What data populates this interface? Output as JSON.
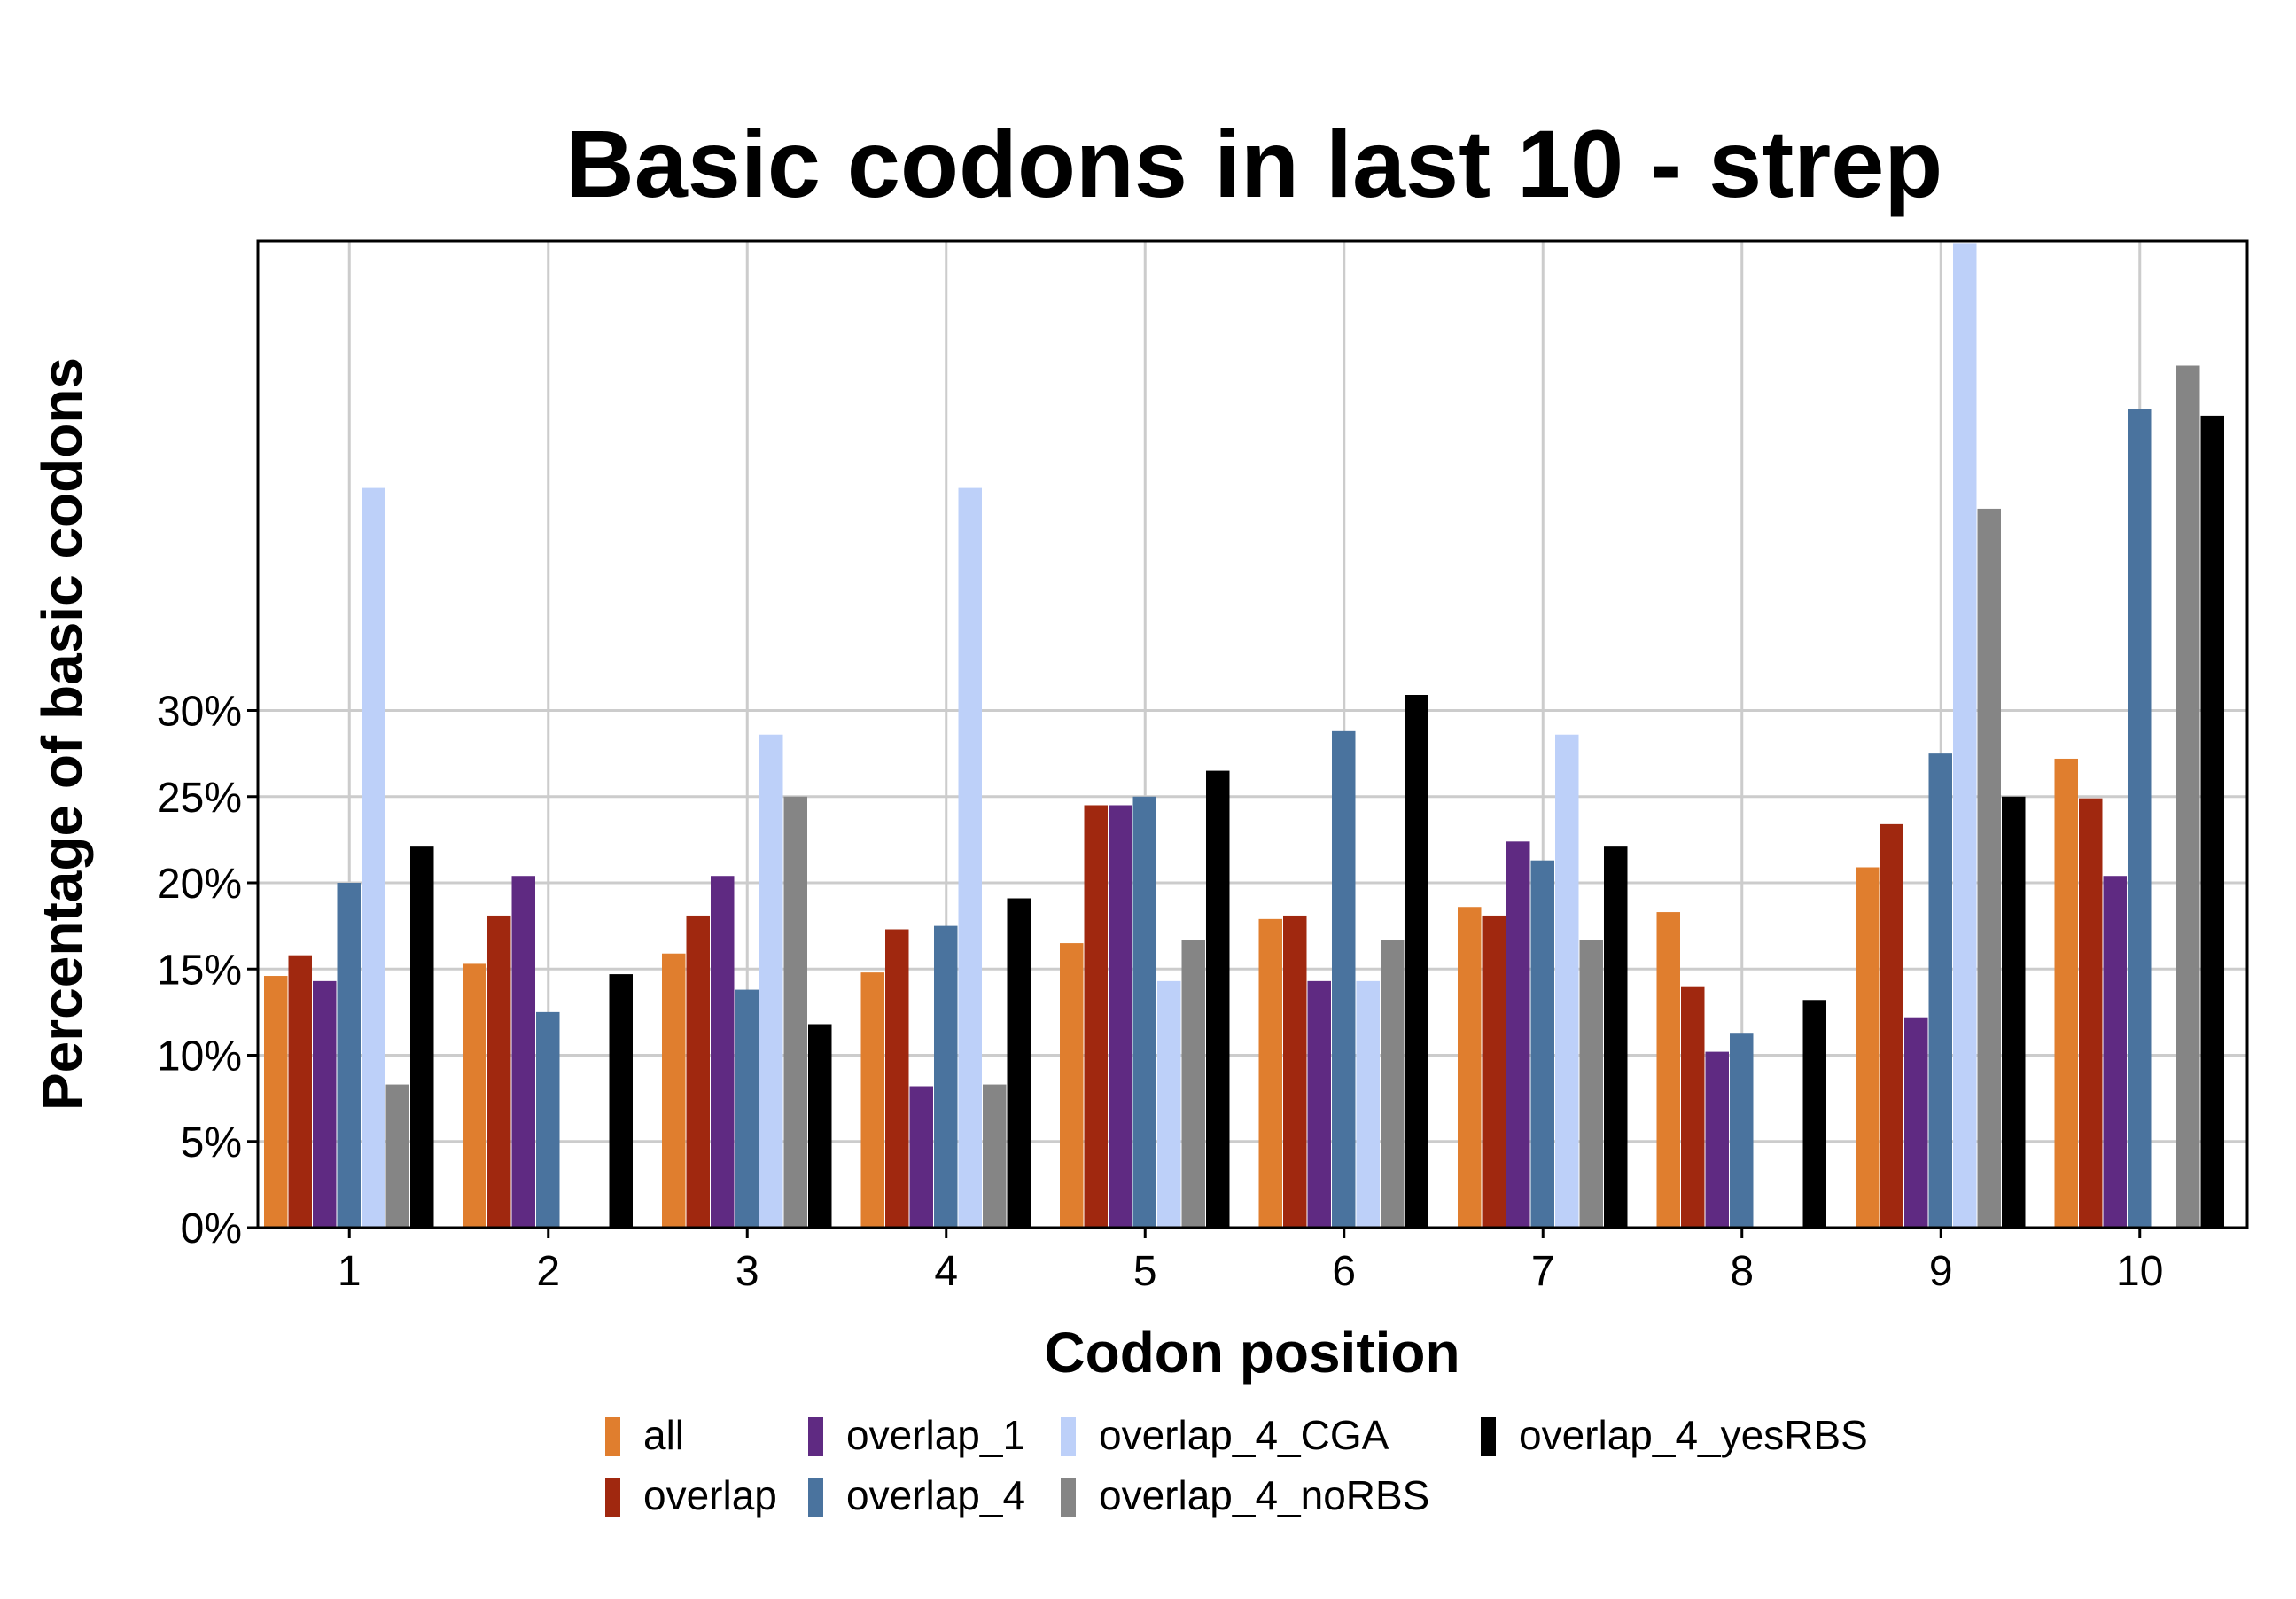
{
  "chart_data": {
    "type": "bar",
    "title": "Basic codons in last 10 - strep",
    "xlabel": "Codon position",
    "ylabel": "Percentage of basic codons",
    "categories": [
      "1",
      "2",
      "3",
      "4",
      "5",
      "6",
      "7",
      "8",
      "9",
      "10"
    ],
    "ylim": [
      0,
      57
    ],
    "yticks": [
      0,
      5,
      10,
      15,
      20,
      25,
      30
    ],
    "ytick_labels": [
      "0%",
      "5%",
      "10%",
      "15%",
      "20%",
      "25%",
      "30%"
    ],
    "grid": true,
    "legend_position": "bottom",
    "series": [
      {
        "name": "all",
        "color": "#E07E2E",
        "values": [
          14.6,
          15.3,
          15.9,
          14.8,
          16.5,
          17.9,
          18.6,
          18.3,
          20.9,
          27.2
        ]
      },
      {
        "name": "overlap",
        "color": "#A0280F",
        "values": [
          15.8,
          18.1,
          18.1,
          17.3,
          24.5,
          18.1,
          18.1,
          14.0,
          23.4,
          24.9
        ]
      },
      {
        "name": "overlap_1",
        "color": "#5F2A82",
        "values": [
          14.3,
          20.4,
          20.4,
          8.2,
          24.5,
          14.3,
          22.4,
          10.2,
          12.2,
          20.4
        ]
      },
      {
        "name": "overlap_4",
        "color": "#4A739E",
        "values": [
          20.0,
          12.5,
          13.8,
          17.5,
          25.0,
          28.8,
          21.3,
          11.3,
          27.5,
          47.5
        ]
      },
      {
        "name": "overlap_4_CGA",
        "color": "#BDD0F9",
        "values": [
          42.9,
          0,
          28.6,
          42.9,
          14.3,
          14.3,
          28.6,
          0,
          57.1,
          0
        ]
      },
      {
        "name": "overlap_4_noRBS",
        "color": "#858585",
        "values": [
          8.3,
          0,
          25.0,
          8.3,
          16.7,
          16.7,
          16.7,
          0,
          41.7,
          50.0
        ]
      },
      {
        "name": "overlap_4_yesRBS",
        "color": "#000000",
        "values": [
          22.1,
          14.7,
          11.8,
          19.1,
          26.5,
          30.9,
          22.1,
          13.2,
          25.0,
          47.1
        ]
      }
    ]
  }
}
